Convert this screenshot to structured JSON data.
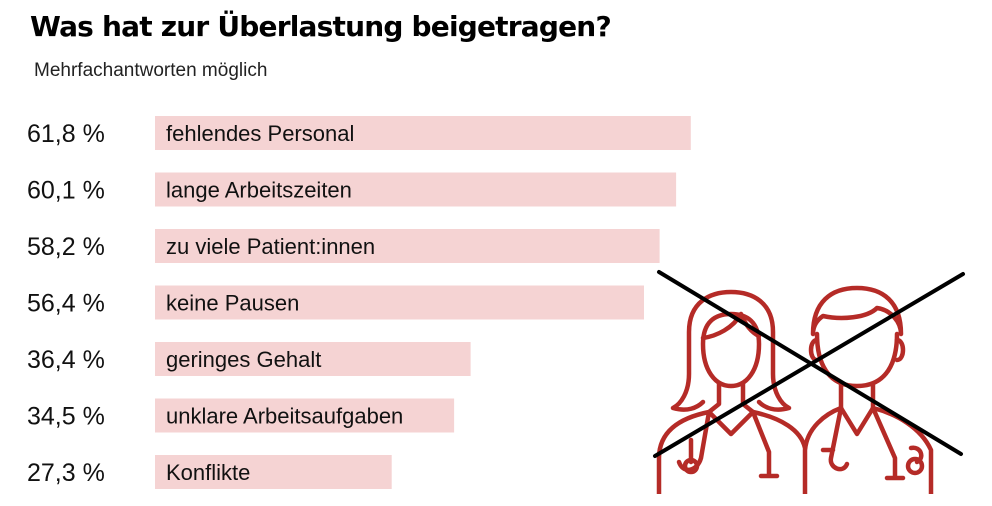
{
  "chart_data": {
    "type": "bar",
    "orientation": "horizontal",
    "title": "Was hat zur Überlastung beigetragen?",
    "subtitle": "Mehrfachantworten möglich",
    "categories": [
      "fehlendes Personal",
      "lange Arbeitszeiten",
      "zu viele Patient:innen",
      "keine Pausen",
      "geringes Gehalt",
      "unklare Arbeitsaufgaben",
      "Konflikte"
    ],
    "values": [
      61.8,
      60.1,
      58.2,
      56.4,
      36.4,
      34.5,
      27.3
    ],
    "value_labels": [
      "61,8 %",
      "60,1 %",
      "58,2 %",
      "56,4 %",
      "36,4 %",
      "34,5 %",
      "27,3 %"
    ],
    "unit": "%",
    "xlim": [
      0,
      100
    ],
    "grid": false,
    "legend": "none",
    "bar_color": "#f5d3d3",
    "icon_color": "#b52b27",
    "cross_color": "#000000"
  },
  "illustration": {
    "icon": "crossed-out-medical-staff-icon"
  }
}
